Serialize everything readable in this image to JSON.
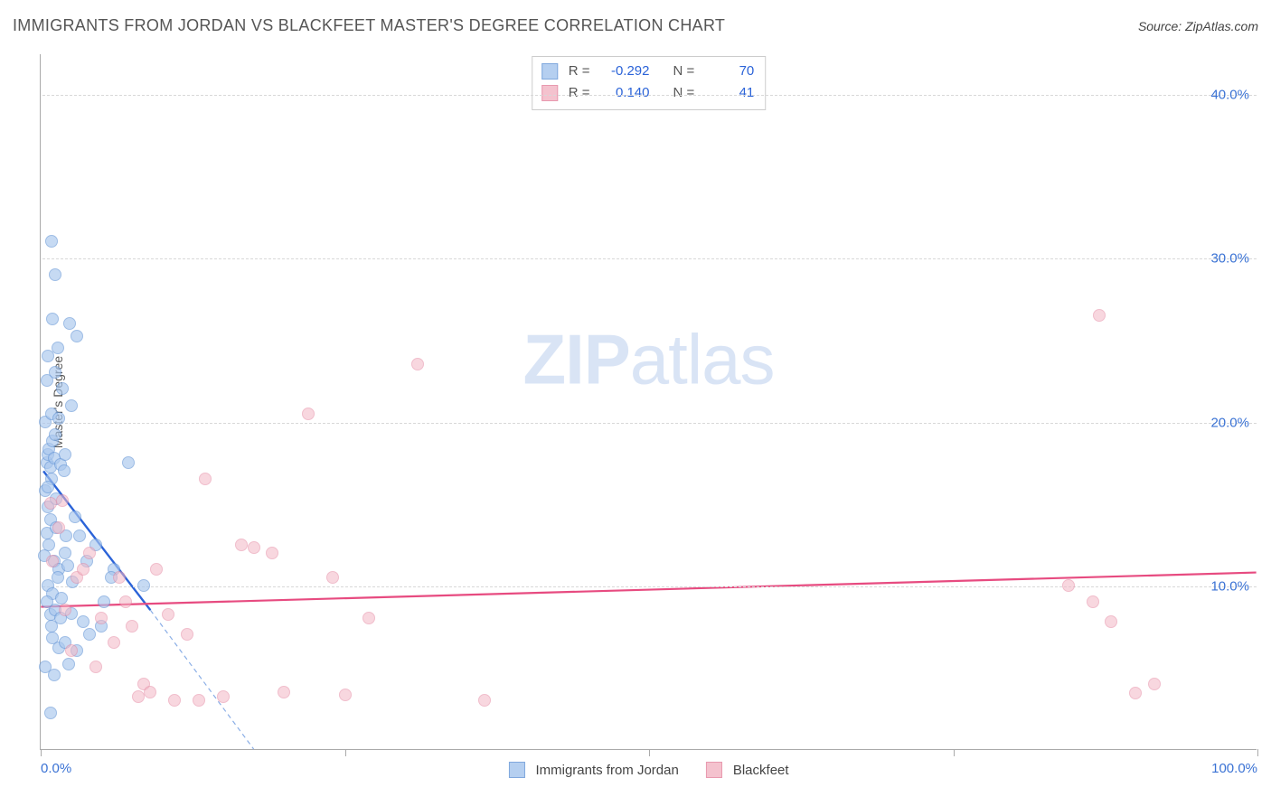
{
  "title": "IMMIGRANTS FROM JORDAN VS BLACKFEET MASTER'S DEGREE CORRELATION CHART",
  "source_label": "Source: ZipAtlas.com",
  "watermark": {
    "bold": "ZIP",
    "rest": "atlas"
  },
  "chart": {
    "type": "scatter",
    "y_axis_title": "Master's Degree",
    "background_color": "#ffffff",
    "grid_color": "#d8d8d8",
    "axis_color": "#aaaaaa",
    "x_range": [
      0,
      100
    ],
    "y_range": [
      0,
      42.5
    ],
    "x_ticks": [
      0,
      25,
      50,
      75,
      100
    ],
    "x_tick_labels": [
      "0.0%",
      "",
      "",
      "",
      "100.0%"
    ],
    "y_gridlines": [
      10,
      20,
      30,
      40
    ],
    "y_tick_labels": [
      "10.0%",
      "20.0%",
      "30.0%",
      "40.0%"
    ],
    "tick_label_color": "#3a72d4",
    "tick_label_fontsize": 15,
    "marker_radius": 7,
    "series": [
      {
        "id": "jordan",
        "label": "Immigrants from Jordan",
        "r_value": "-0.292",
        "n_value": "70",
        "fill_color": "#a9c7ee",
        "fill_opacity": 0.65,
        "stroke_color": "#6b9ad8",
        "trend": {
          "solid": {
            "x1": 0.2,
            "y1": 17.0,
            "x2": 9.0,
            "y2": 8.5,
            "color": "#2b63d8",
            "width": 2.4
          },
          "dashed": {
            "x1": 9.0,
            "y1": 8.5,
            "x2": 17.5,
            "y2": 0,
            "color": "#8aaee6",
            "width": 1.2,
            "dash": "5,4"
          }
        },
        "points": [
          [
            0.5,
            17.5
          ],
          [
            0.6,
            18.0
          ],
          [
            0.7,
            18.3
          ],
          [
            0.8,
            17.2
          ],
          [
            0.9,
            16.5
          ],
          [
            1.0,
            18.8
          ],
          [
            1.1,
            17.8
          ],
          [
            1.2,
            19.2
          ],
          [
            0.4,
            15.8
          ],
          [
            0.6,
            14.8
          ],
          [
            0.8,
            14.0
          ],
          [
            1.3,
            15.3
          ],
          [
            1.6,
            17.4
          ],
          [
            1.9,
            17.0
          ],
          [
            2.0,
            18.0
          ],
          [
            0.5,
            22.5
          ],
          [
            1.2,
            23.0
          ],
          [
            1.8,
            22.0
          ],
          [
            2.5,
            21.0
          ],
          [
            1.0,
            26.3
          ],
          [
            2.4,
            26.0
          ],
          [
            3.0,
            25.2
          ],
          [
            1.2,
            29.0
          ],
          [
            0.9,
            31.0
          ],
          [
            0.7,
            12.5
          ],
          [
            1.1,
            11.5
          ],
          [
            1.5,
            11.0
          ],
          [
            2.0,
            12.0
          ],
          [
            2.2,
            11.2
          ],
          [
            0.6,
            10.0
          ],
          [
            1.0,
            9.5
          ],
          [
            1.4,
            10.5
          ],
          [
            2.6,
            10.2
          ],
          [
            0.8,
            8.2
          ],
          [
            1.2,
            8.5
          ],
          [
            1.6,
            8.0
          ],
          [
            2.5,
            8.3
          ],
          [
            3.5,
            7.8
          ],
          [
            1.0,
            6.8
          ],
          [
            1.5,
            6.2
          ],
          [
            2.0,
            6.5
          ],
          [
            3.0,
            6.0
          ],
          [
            4.0,
            7.0
          ],
          [
            5.0,
            7.5
          ],
          [
            6.0,
            11.0
          ],
          [
            7.2,
            17.5
          ],
          [
            8.5,
            10.0
          ],
          [
            0.5,
            13.2
          ],
          [
            1.3,
            13.5
          ],
          [
            2.1,
            13.0
          ],
          [
            2.8,
            14.2
          ],
          [
            0.4,
            20.0
          ],
          [
            0.9,
            20.5
          ],
          [
            1.5,
            20.2
          ],
          [
            0.6,
            24.0
          ],
          [
            1.4,
            24.5
          ],
          [
            0.3,
            11.8
          ],
          [
            0.5,
            9.0
          ],
          [
            0.9,
            7.5
          ],
          [
            1.7,
            9.2
          ],
          [
            3.2,
            13.0
          ],
          [
            3.8,
            11.5
          ],
          [
            4.5,
            12.5
          ],
          [
            5.2,
            9.0
          ],
          [
            5.8,
            10.5
          ],
          [
            0.4,
            5.0
          ],
          [
            1.1,
            4.5
          ],
          [
            2.3,
            5.2
          ],
          [
            0.8,
            2.2
          ],
          [
            0.6,
            16.0
          ]
        ]
      },
      {
        "id": "blackfeet",
        "label": "Blackfeet",
        "r_value": "0.140",
        "n_value": "41",
        "fill_color": "#f3b8c6",
        "fill_opacity": 0.55,
        "stroke_color": "#e588a2",
        "trend": {
          "solid": {
            "x1": 0,
            "y1": 8.7,
            "x2": 100,
            "y2": 10.8,
            "color": "#e74b80",
            "width": 2.2
          }
        },
        "points": [
          [
            0.8,
            15.0
          ],
          [
            1.5,
            13.5
          ],
          [
            1.8,
            15.2
          ],
          [
            3.0,
            10.5
          ],
          [
            3.5,
            11.0
          ],
          [
            4.0,
            12.0
          ],
          [
            5.0,
            8.0
          ],
          [
            6.0,
            6.5
          ],
          [
            7.0,
            9.0
          ],
          [
            7.5,
            7.5
          ],
          [
            8.5,
            4.0
          ],
          [
            9.0,
            3.5
          ],
          [
            9.5,
            11.0
          ],
          [
            10.5,
            8.2
          ],
          [
            11.0,
            3.0
          ],
          [
            12.0,
            7.0
          ],
          [
            13.5,
            16.5
          ],
          [
            15.0,
            3.2
          ],
          [
            16.5,
            12.5
          ],
          [
            17.5,
            12.3
          ],
          [
            19.0,
            12.0
          ],
          [
            20.0,
            3.5
          ],
          [
            22.0,
            20.5
          ],
          [
            24.0,
            10.5
          ],
          [
            25.0,
            3.3
          ],
          [
            27.0,
            8.0
          ],
          [
            31.0,
            23.5
          ],
          [
            36.5,
            3.0
          ],
          [
            84.5,
            10.0
          ],
          [
            86.5,
            9.0
          ],
          [
            87.0,
            26.5
          ],
          [
            88.0,
            7.8
          ],
          [
            90.0,
            3.4
          ],
          [
            91.5,
            4.0
          ],
          [
            2.0,
            8.5
          ],
          [
            2.5,
            6.0
          ],
          [
            4.5,
            5.0
          ],
          [
            6.5,
            10.5
          ],
          [
            8.0,
            3.2
          ],
          [
            13.0,
            3.0
          ],
          [
            1.0,
            11.5
          ]
        ]
      }
    ],
    "correlation_box": {
      "r_label": "R =",
      "n_label": "N ="
    },
    "bottom_legend": true
  }
}
